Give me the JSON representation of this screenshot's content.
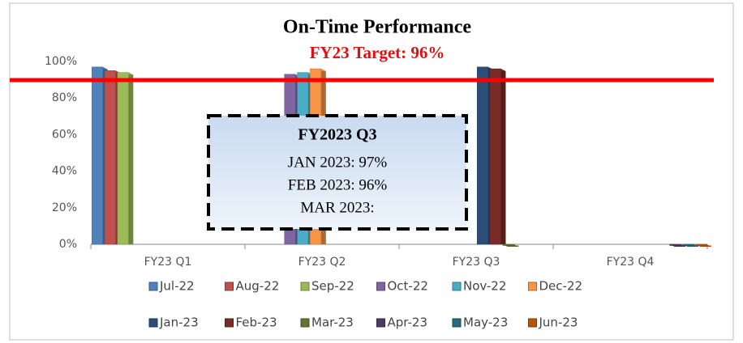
{
  "chart_data": {
    "type": "bar",
    "title": "On-Time Performance",
    "subtitle": "FY23 Target: 96%",
    "categories": [
      "FY23 Q1",
      "FY23 Q2",
      "FY23 Q3",
      "FY23 Q4"
    ],
    "series": [
      {
        "name": "Jul-22",
        "color": "#4f81bd",
        "values": [
          97,
          null,
          null,
          null
        ]
      },
      {
        "name": "Aug-22",
        "color": "#c0504d",
        "values": [
          95,
          null,
          null,
          null
        ]
      },
      {
        "name": "Sep-22",
        "color": "#9bbb59",
        "values": [
          94,
          null,
          null,
          null
        ]
      },
      {
        "name": "Oct-22",
        "color": "#8064a2",
        "values": [
          null,
          93,
          null,
          null
        ]
      },
      {
        "name": "Nov-22",
        "color": "#4bacc6",
        "values": [
          null,
          94,
          null,
          null
        ]
      },
      {
        "name": "Dec-22",
        "color": "#f79646",
        "values": [
          null,
          96,
          null,
          null
        ]
      },
      {
        "name": "Jan-23",
        "color": "#2c4d75",
        "values": [
          null,
          null,
          97,
          null
        ]
      },
      {
        "name": "Feb-23",
        "color": "#772c2a",
        "values": [
          null,
          null,
          96,
          null
        ]
      },
      {
        "name": "Mar-23",
        "color": "#5f7530",
        "values": [
          null,
          null,
          0,
          null
        ]
      },
      {
        "name": "Apr-23",
        "color": "#4d3b62",
        "values": [
          null,
          null,
          null,
          0
        ]
      },
      {
        "name": "May-23",
        "color": "#276a7c",
        "values": [
          null,
          null,
          null,
          0
        ]
      },
      {
        "name": "Jun-23",
        "color": "#b65708",
        "values": [
          null,
          null,
          null,
          0
        ]
      }
    ],
    "ylim": [
      0,
      100
    ],
    "yticks": [
      {
        "value": 0,
        "label": "0%"
      },
      {
        "value": 20,
        "label": "20%"
      },
      {
        "value": 40,
        "label": "40%"
      },
      {
        "value": 60,
        "label": "60%"
      },
      {
        "value": 80,
        "label": "80%"
      },
      {
        "value": 100,
        "label": "100%"
      }
    ],
    "grid": false,
    "legend": "bottom",
    "annotation": {
      "heading": "FY2023 Q3",
      "lines": [
        "JAN 2023: 97%",
        "FEB 2023:  96%",
        "MAR 2023:"
      ]
    }
  }
}
